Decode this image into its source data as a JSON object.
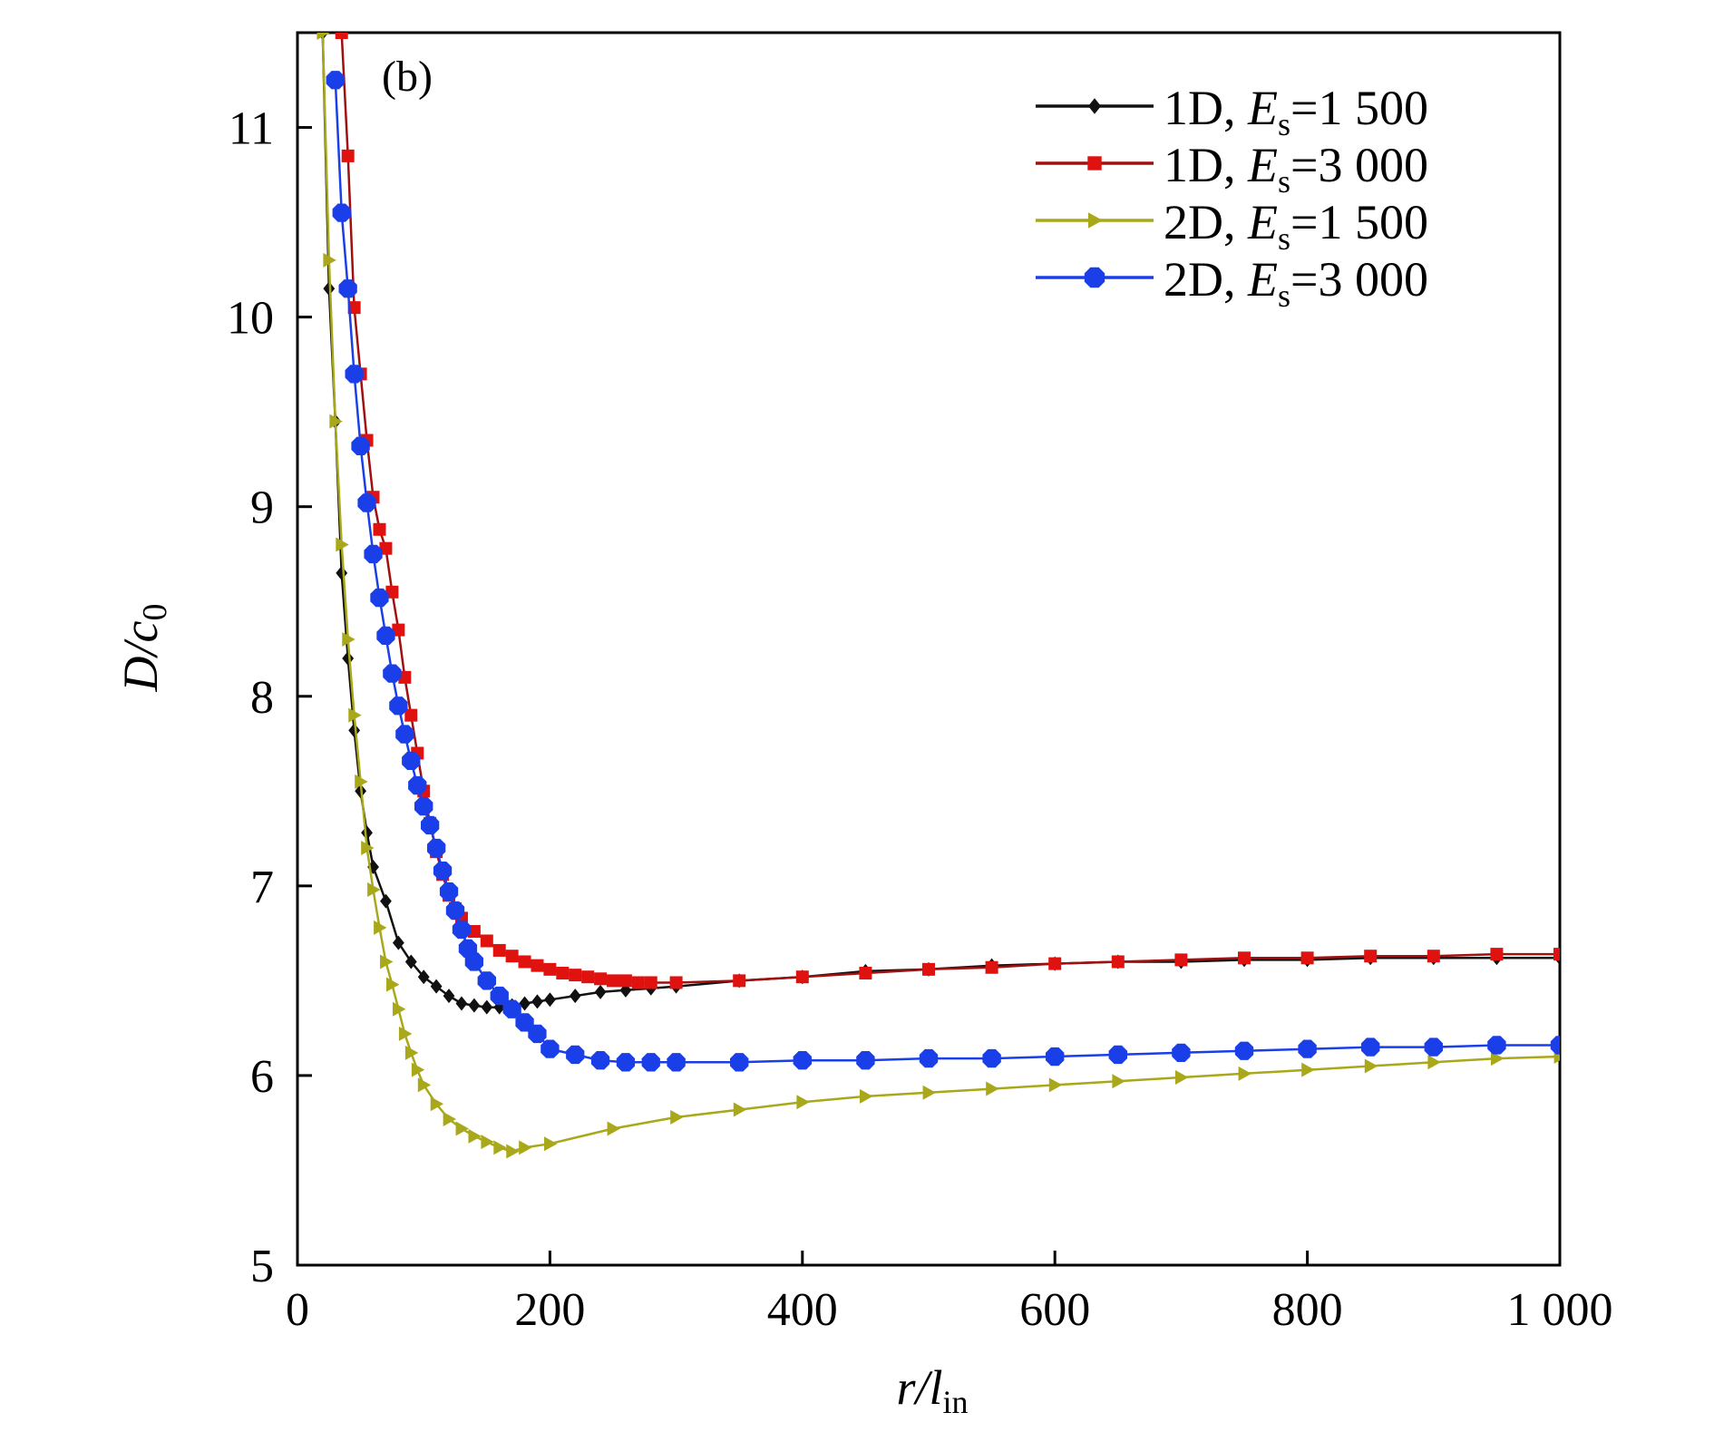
{
  "chart_data": {
    "type": "line",
    "panel_label": "(b)",
    "xlabel": {
      "main": "r/l",
      "sub": "in"
    },
    "ylabel": {
      "main": "D/c",
      "sub": "0"
    },
    "xlim": [
      0,
      1000
    ],
    "ylim": [
      5,
      11.5
    ],
    "xticks": [
      {
        "value": 0,
        "label": "0"
      },
      {
        "value": 200,
        "label": "200"
      },
      {
        "value": 400,
        "label": "400"
      },
      {
        "value": 600,
        "label": "600"
      },
      {
        "value": 800,
        "label": "800"
      },
      {
        "value": 1000,
        "label": "1 000"
      }
    ],
    "yticks": [
      {
        "value": 5,
        "label": "5"
      },
      {
        "value": 6,
        "label": "6"
      },
      {
        "value": 7,
        "label": "7"
      },
      {
        "value": 8,
        "label": "8"
      },
      {
        "value": 9,
        "label": "9"
      },
      {
        "value": 10,
        "label": "10"
      },
      {
        "value": 11,
        "label": "11"
      }
    ],
    "grid": false,
    "legend_position": "top-right",
    "series": [
      {
        "name": "1D, Es=1 500",
        "legend": {
          "prefix": "1D, ",
          "var": "E",
          "sub": "s",
          "suffix": "=1 500"
        },
        "color": "#111111",
        "marker": "diamond",
        "x": [
          20,
          25,
          30,
          35,
          40,
          45,
          50,
          55,
          60,
          70,
          80,
          90,
          100,
          110,
          120,
          130,
          140,
          150,
          160,
          170,
          180,
          190,
          200,
          220,
          240,
          260,
          280,
          300,
          350,
          400,
          450,
          500,
          550,
          600,
          650,
          700,
          750,
          800,
          850,
          900,
          950,
          1000
        ],
        "y": [
          11.5,
          10.15,
          9.45,
          8.65,
          8.2,
          7.82,
          7.5,
          7.28,
          7.1,
          6.92,
          6.7,
          6.6,
          6.52,
          6.47,
          6.42,
          6.38,
          6.37,
          6.36,
          6.36,
          6.37,
          6.38,
          6.39,
          6.4,
          6.42,
          6.44,
          6.45,
          6.46,
          6.47,
          6.5,
          6.52,
          6.55,
          6.56,
          6.58,
          6.59,
          6.6,
          6.6,
          6.61,
          6.61,
          6.62,
          6.62,
          6.62,
          6.62
        ]
      },
      {
        "name": "1D, Es=3 000",
        "legend": {
          "prefix": "1D, ",
          "var": "E",
          "sub": "s",
          "suffix": "=3 000"
        },
        "color": "#e0120f",
        "line_color": "#a01010",
        "marker": "square",
        "x": [
          35,
          40,
          45,
          50,
          55,
          60,
          65,
          70,
          75,
          80,
          85,
          90,
          95,
          100,
          105,
          110,
          115,
          120,
          125,
          130,
          140,
          150,
          160,
          170,
          180,
          190,
          200,
          210,
          220,
          230,
          240,
          250,
          260,
          270,
          280,
          300,
          350,
          400,
          450,
          500,
          550,
          600,
          650,
          700,
          750,
          800,
          850,
          900,
          950,
          1000
        ],
        "y": [
          11.5,
          10.85,
          10.05,
          9.7,
          9.35,
          9.05,
          8.88,
          8.78,
          8.55,
          8.35,
          8.1,
          7.9,
          7.7,
          7.5,
          7.33,
          7.18,
          7.06,
          6.95,
          6.88,
          6.83,
          6.76,
          6.71,
          6.66,
          6.63,
          6.6,
          6.58,
          6.56,
          6.54,
          6.53,
          6.52,
          6.51,
          6.5,
          6.5,
          6.49,
          6.49,
          6.49,
          6.5,
          6.52,
          6.54,
          6.56,
          6.57,
          6.59,
          6.6,
          6.61,
          6.62,
          6.62,
          6.63,
          6.63,
          6.64,
          6.64
        ]
      },
      {
        "name": "2D, Es=1 500",
        "legend": {
          "prefix": "2D, ",
          "var": "E",
          "sub": "s",
          "suffix": "=1 500"
        },
        "color": "#a8a81a",
        "marker": "triangle-right",
        "x": [
          20,
          25,
          30,
          35,
          40,
          45,
          50,
          55,
          60,
          65,
          70,
          75,
          80,
          85,
          90,
          95,
          100,
          110,
          120,
          130,
          140,
          150,
          160,
          170,
          180,
          200,
          250,
          300,
          350,
          400,
          450,
          500,
          550,
          600,
          650,
          700,
          750,
          800,
          850,
          900,
          950,
          1000
        ],
        "y": [
          11.5,
          10.3,
          9.45,
          8.8,
          8.3,
          7.9,
          7.55,
          7.2,
          6.98,
          6.78,
          6.6,
          6.48,
          6.35,
          6.22,
          6.12,
          6.03,
          5.95,
          5.85,
          5.77,
          5.72,
          5.68,
          5.65,
          5.62,
          5.6,
          5.62,
          5.64,
          5.72,
          5.78,
          5.82,
          5.86,
          5.89,
          5.91,
          5.93,
          5.95,
          5.97,
          5.99,
          6.01,
          6.03,
          6.05,
          6.07,
          6.09,
          6.1
        ]
      },
      {
        "name": "2D, Es=3 000",
        "legend": {
          "prefix": "2D, ",
          "var": "E",
          "sub": "s",
          "suffix": "=3 000"
        },
        "color": "#1a3fe8",
        "marker": "octagon",
        "x": [
          30,
          35,
          40,
          45,
          50,
          55,
          60,
          65,
          70,
          75,
          80,
          85,
          90,
          95,
          100,
          105,
          110,
          115,
          120,
          125,
          130,
          135,
          140,
          150,
          160,
          170,
          180,
          190,
          200,
          220,
          240,
          260,
          280,
          300,
          350,
          400,
          450,
          500,
          550,
          600,
          650,
          700,
          750,
          800,
          850,
          900,
          950,
          1000
        ],
        "y": [
          11.25,
          10.55,
          10.15,
          9.7,
          9.32,
          9.02,
          8.75,
          8.52,
          8.32,
          8.12,
          7.95,
          7.8,
          7.66,
          7.53,
          7.42,
          7.32,
          7.2,
          7.08,
          6.97,
          6.87,
          6.77,
          6.67,
          6.6,
          6.5,
          6.42,
          6.35,
          6.28,
          6.22,
          6.14,
          6.11,
          6.08,
          6.07,
          6.07,
          6.07,
          6.07,
          6.08,
          6.08,
          6.09,
          6.09,
          6.1,
          6.11,
          6.12,
          6.13,
          6.14,
          6.15,
          6.15,
          6.16,
          6.16
        ]
      }
    ]
  }
}
